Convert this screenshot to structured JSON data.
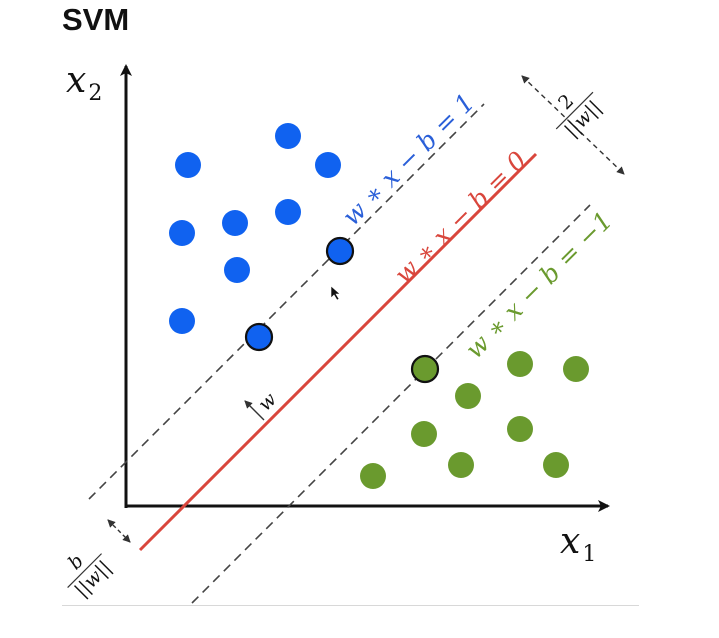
{
  "title": "SVM",
  "axes": {
    "x_label": "x",
    "x_subscript": "1",
    "y_label": "x",
    "y_subscript": "2"
  },
  "lines": {
    "upper_margin": {
      "label": "w ∗ x − b = 1",
      "color": "#2a5fd8"
    },
    "hyperplane": {
      "label": "w ∗ x − b = 0",
      "color": "#d9463c"
    },
    "lower_margin": {
      "label": "w ∗ x − b = −1",
      "color": "#6a9a2e"
    }
  },
  "annotations": {
    "normal_vector": "w",
    "margin_width": {
      "numerator": "2",
      "denominator": "||w||"
    },
    "offset": {
      "numerator": "b",
      "denominator": "||w||"
    }
  },
  "colors": {
    "blue_class": "#1062f0",
    "green_class": "#6a9a2e"
  }
}
